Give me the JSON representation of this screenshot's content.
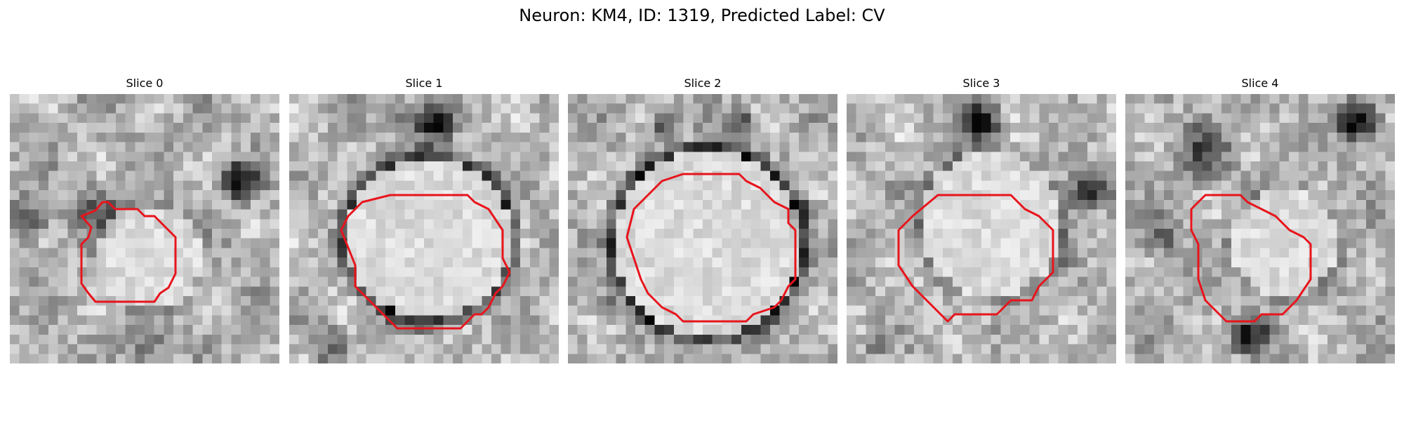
{
  "figure": {
    "title": "Neuron: KM4, ID: 1319, Predicted Label: CV"
  },
  "panels": [
    {
      "title": "Slice 0"
    },
    {
      "title": "Slice 1"
    },
    {
      "title": "Slice 2"
    },
    {
      "title": "Slice 3"
    },
    {
      "title": "Slice 4"
    }
  ],
  "colors": {
    "outline": "#e8141c",
    "background": "#ffffff"
  }
}
